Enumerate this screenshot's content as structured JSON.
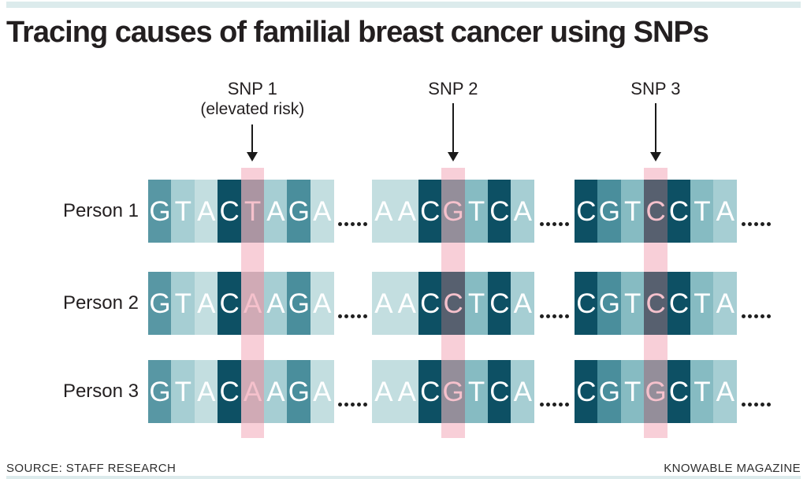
{
  "title": "Tracing causes of familial breast cancer using SNPs",
  "snps": [
    {
      "label": "SNP 1",
      "sublabel": "(elevated risk)"
    },
    {
      "label": "SNP 2",
      "sublabel": ""
    },
    {
      "label": "SNP 3",
      "sublabel": ""
    }
  ],
  "rows": [
    {
      "label": "Person 1",
      "blocks": [
        {
          "letters": "GTACTAGA",
          "shades": [
            "med",
            "light",
            "xlight",
            "dark",
            "med",
            "light",
            "med2",
            "xlight"
          ],
          "snp_index": 4
        },
        {
          "letters": "AACGTCA",
          "shades": [
            "xlight",
            "xlight",
            "dark",
            "med2",
            "mlight",
            "dark",
            "light"
          ],
          "snp_index": 3
        },
        {
          "letters": "CGTCCTA",
          "shades": [
            "dark",
            "med2",
            "mlight",
            "dark",
            "dark",
            "mlight",
            "light"
          ],
          "snp_index": 3
        }
      ]
    },
    {
      "label": "Person 2",
      "blocks": [
        {
          "letters": "GTACAAGA",
          "shades": [
            "med",
            "light",
            "xlight",
            "dark",
            "light",
            "light",
            "med2",
            "xlight"
          ],
          "snp_index": 4
        },
        {
          "letters": "AACCTCA",
          "shades": [
            "xlight",
            "xlight",
            "dark",
            "dark",
            "mlight",
            "dark",
            "light"
          ],
          "snp_index": 3
        },
        {
          "letters": "CGTCCTA",
          "shades": [
            "dark",
            "med2",
            "mlight",
            "dark",
            "dark",
            "mlight",
            "light"
          ],
          "snp_index": 3
        }
      ]
    },
    {
      "label": "Person 3",
      "blocks": [
        {
          "letters": "GTACAAGA",
          "shades": [
            "med",
            "light",
            "xlight",
            "dark",
            "light",
            "light",
            "med2",
            "xlight"
          ],
          "snp_index": 4
        },
        {
          "letters": "AACGTCA",
          "shades": [
            "xlight",
            "xlight",
            "dark",
            "med2",
            "mlight",
            "dark",
            "light"
          ],
          "snp_index": 3
        },
        {
          "letters": "CGTGCTA",
          "shades": [
            "dark",
            "med2",
            "mlight",
            "med2",
            "dark",
            "mlight",
            "light"
          ],
          "snp_index": 3
        }
      ]
    }
  ],
  "ellipsis_dots": 5,
  "footer": {
    "source": "SOURCE: STAFF RESEARCH",
    "credit": "KNOWABLE MAGAZINE"
  },
  "colors": {
    "accent_bar": "#dcebec",
    "text_dark": "#231f20",
    "footer_text": "#2e2e2e",
    "arrow": "#1a1a1a",
    "dot": "#1f1f1f",
    "tile_shades": {
      "xlight": "#c3dee0",
      "light": "#a6ced3",
      "mlight": "#86bbc2",
      "med": "#5897a4",
      "med2": "#4a8e9c",
      "dark": "#0d5064"
    },
    "highlight_band": "#f8cfd8",
    "highlight_tile": {
      "xlight": "#dcb4bd",
      "light": "#d0aab5",
      "mlight": "#c0a5b0",
      "med": "#ab95a2",
      "med2": "#948e9a",
      "dark": "#57606f"
    },
    "letter_normal": "#ffffff",
    "letter_highlight": "#f5c1cc"
  }
}
